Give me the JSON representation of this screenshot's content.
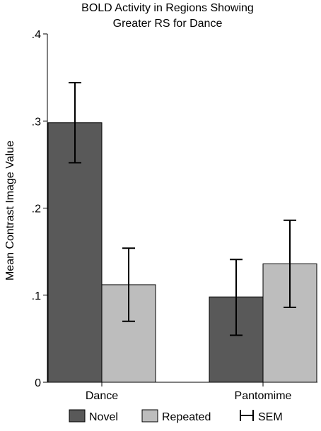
{
  "chart_data": {
    "type": "bar",
    "title_lines": [
      "BOLD Activity in Regions Showing",
      "Greater RS for Dance"
    ],
    "ylabel": "Mean Contrast Image Value",
    "xlabel": "",
    "categories": [
      "Dance",
      "Pantomime"
    ],
    "ylim": [
      0,
      0.4
    ],
    "yticks": [
      0,
      0.1,
      0.2,
      0.3,
      0.4
    ],
    "ytick_labels": [
      "0",
      ".1",
      ".2",
      ".3",
      ".4"
    ],
    "series": [
      {
        "name": "Novel",
        "color": "#595959",
        "values": [
          0.298,
          0.098
        ],
        "err_low": [
          0.252,
          0.054
        ],
        "err_high": [
          0.344,
          0.141
        ]
      },
      {
        "name": "Repeated",
        "color": "#bdbdbd",
        "values": [
          0.112,
          0.136
        ],
        "err_low": [
          0.07,
          0.086
        ],
        "err_high": [
          0.154,
          0.186
        ]
      }
    ],
    "error_bar_label": "SEM",
    "grid": false,
    "legend_position": "bottom"
  }
}
